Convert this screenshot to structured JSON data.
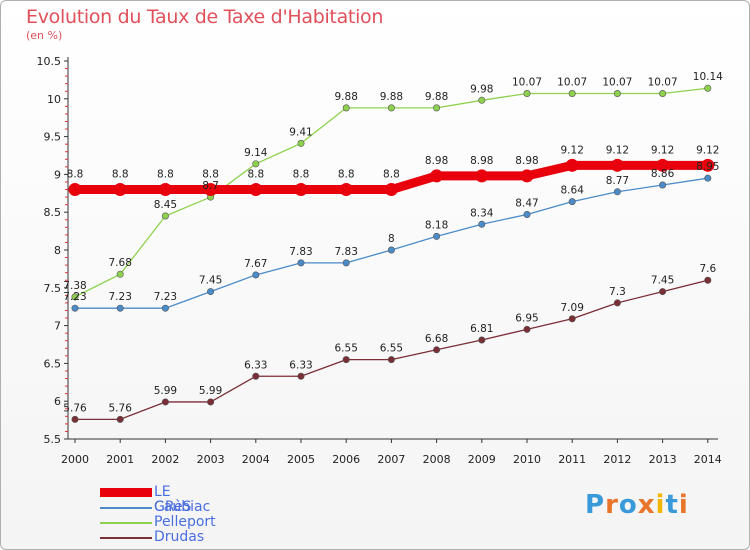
{
  "title": "Evolution du Taux de Taxe d'Habitation",
  "subtitle": "(en %)",
  "logo": {
    "text": "Proxiti",
    "colors": [
      "#3a9ad9",
      "#e8752a",
      "#3a9ad9",
      "#e8752a",
      "#f2b705",
      "#3a9ad9",
      "#e8752a"
    ]
  },
  "chart_data": {
    "type": "line",
    "title": "Evolution du Taux de Taxe d'Habitation",
    "ylabel": "(en %)",
    "xlabel": "",
    "x": [
      "2000",
      "2001",
      "2002",
      "2003",
      "2004",
      "2005",
      "2006",
      "2007",
      "2008",
      "2009",
      "2010",
      "2011",
      "2012",
      "2013",
      "2014"
    ],
    "ylim": [
      5.5,
      10.5
    ],
    "yticks": [
      "5.5",
      "6",
      "6.5",
      "7",
      "7.5",
      "8",
      "8.5",
      "9",
      "9.5",
      "10",
      "10.5"
    ],
    "grid": false,
    "legend_position": "bottom-left",
    "series": [
      {
        "name": "Caubiac",
        "color": "#4b8bc8",
        "width": 1.3,
        "values": [
          7.23,
          7.23,
          7.23,
          7.45,
          7.67,
          7.83,
          7.83,
          8,
          8.18,
          8.34,
          8.47,
          8.64,
          8.77,
          8.86,
          8.95
        ],
        "labels": [
          "7.23",
          "7.23",
          "7.23",
          "7.45",
          "7.67",
          "7.83",
          "7.83",
          "8",
          "8.18",
          "8.34",
          "8.47",
          "8.64",
          "8.77",
          "8.86",
          "8.95"
        ]
      },
      {
        "name": "Pelleport",
        "color": "#8ed14e",
        "width": 1.3,
        "values": [
          7.38,
          7.68,
          8.45,
          8.7,
          9.14,
          9.41,
          9.88,
          9.88,
          9.88,
          9.98,
          10.07,
          10.07,
          10.07,
          10.07,
          10.14
        ],
        "labels": [
          "7.38",
          "7.68",
          "8.45",
          "8.7",
          "9.14",
          "9.41",
          "9.88",
          "9.88",
          "9.88",
          "9.98",
          "10.07",
          "10.07",
          "10.07",
          "10.07",
          "10.14"
        ]
      },
      {
        "name": "Drudas",
        "color": "#7a2e35",
        "width": 1.3,
        "values": [
          5.76,
          5.76,
          5.99,
          5.99,
          6.33,
          6.33,
          6.55,
          6.55,
          6.68,
          6.81,
          6.95,
          7.09,
          7.3,
          7.45,
          7.6
        ],
        "labels": [
          "5.76",
          "5.76",
          "5.99",
          "5.99",
          "6.33",
          "6.33",
          "6.55",
          "6.55",
          "6.68",
          "6.81",
          "6.95",
          "7.09",
          "7.3",
          "7.45",
          "7.6"
        ]
      },
      {
        "name": "LE GRèS",
        "color": "#e8000d",
        "width": 9,
        "values": [
          8.8,
          8.8,
          8.8,
          8.8,
          8.8,
          8.8,
          8.8,
          8.8,
          8.98,
          8.98,
          8.98,
          9.12,
          9.12,
          9.12,
          9.12
        ],
        "labels": [
          "8.8",
          "8.8",
          "8.8",
          "8.8",
          "8.8",
          "8.8",
          "8.8",
          "8.8",
          "8.98",
          "8.98",
          "8.98",
          "9.12",
          "9.12",
          "9.12",
          "9.12"
        ]
      }
    ],
    "legend_order": [
      "LE GRèS",
      "Caubiac",
      "Pelleport",
      "Drudas"
    ]
  }
}
